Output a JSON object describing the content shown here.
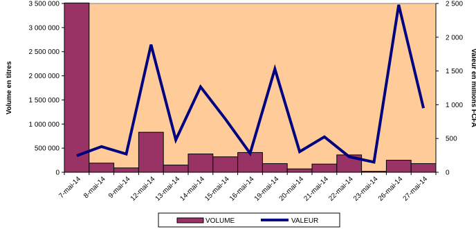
{
  "chart_data": {
    "type": "bar",
    "categories": [
      "7-mai-14",
      "8-mai-14",
      "9-mai-14",
      "12-mai-14",
      "13-mai-14",
      "14-mai-14",
      "15-mai-14",
      "16-mai-14",
      "19-mai-14",
      "20-mai-14",
      "21-mai-14",
      "22-mai-14",
      "23-mai-14",
      "26-mai-14",
      "27-mai-14"
    ],
    "series": [
      {
        "name": "VOLUME",
        "type": "bar",
        "axis": "left",
        "color": "#993366",
        "values": [
          3510000,
          190000,
          90000,
          830000,
          150000,
          380000,
          320000,
          410000,
          180000,
          70000,
          170000,
          360000,
          20000,
          250000,
          180000
        ]
      },
      {
        "name": "VALEUR",
        "type": "line",
        "axis": "right",
        "color": "#000080",
        "values": [
          245,
          380,
          270,
          1890,
          480,
          1265,
          790,
          280,
          1530,
          305,
          525,
          230,
          150,
          2480,
          950
        ]
      }
    ],
    "ylabel": "Volume en titres",
    "y2label": "Valeur en millions FCFA",
    "ylim": [
      0,
      3500000
    ],
    "y2lim": [
      0,
      2500
    ],
    "yticks": [
      "0",
      "500 000",
      "1 000 000",
      "1 500 000",
      "2 000 000",
      "2 500 000",
      "3 000 000",
      "3 500 000"
    ],
    "y2ticks": [
      "0",
      "500",
      "1 000",
      "1 500",
      "2 000",
      "2 500"
    ],
    "legend_position": "bottom",
    "plot_background": "#FFCC99",
    "grid": false
  }
}
